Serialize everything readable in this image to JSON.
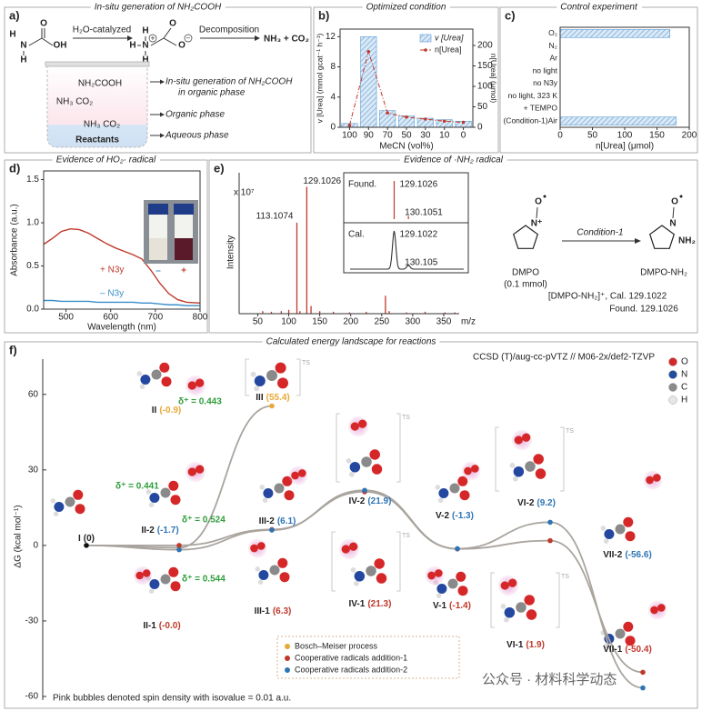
{
  "panel_labels": [
    "a)",
    "b)",
    "c)",
    "d)",
    "e)",
    "f)"
  ],
  "panel_a": {
    "title": "In-situ generation of NH₂COOH",
    "step1": "H₂O-catalyzed",
    "step2": "Decomposition",
    "products": "NH₃ + CO₂",
    "reactant_atoms": [
      "H",
      "N",
      "O",
      "OH",
      "H"
    ],
    "intermediate_atoms": [
      "H",
      "H",
      "N",
      "H",
      "O",
      "O"
    ],
    "charges": [
      "+",
      "−"
    ],
    "beaker_texts": [
      "NH₂COOH",
      "NH₃  CO₂",
      "NH₃  CO₂",
      "Reactants"
    ],
    "phase_notes": [
      "In-situ generation of NH₂COOH",
      "in organic phase",
      "Organic phase",
      "Aqueous phase"
    ]
  },
  "panel_e_scheme": {
    "reagent": "DMPO",
    "amount": "(0.1 mmol)",
    "condition": "Condition-1",
    "product": "DMPO-NH₂",
    "reagent_atoms": [
      "N⁺",
      "O"
    ],
    "product_atoms": [
      "N",
      "O",
      "NH₂"
    ],
    "ion": "[DMPO-NH₂]⁺, Cal. 129.1022",
    "found": "Found. 129.1026"
  },
  "watermark": "公众号 · 材料科学动态",
  "chart_data": [
    {
      "type": "bar_line",
      "title": "Optimized condition",
      "xlabel": "MeCN (vol%)",
      "ylabel": "v [Urea] (mmol gcat⁻¹ h⁻¹)",
      "y2label": "n[Urea] (μmol)",
      "categories": [
        "100",
        "90",
        "70",
        "50",
        "30",
        "10",
        "0"
      ],
      "series": [
        {
          "name": "v [Urea]",
          "color": "#5b9bd5",
          "values": [
            0.5,
            12,
            2.2,
            1.5,
            1.2,
            1.0,
            0.8
          ]
        },
        {
          "name": "n[Urea]",
          "color": "#c0392b",
          "axis": "y2",
          "values": [
            5,
            185,
            35,
            25,
            20,
            15,
            12
          ]
        }
      ],
      "ylim": [
        0,
        13
      ],
      "yticks": [
        0,
        4,
        8,
        12
      ],
      "y2lim": [
        0,
        240
      ],
      "y2ticks": [
        0,
        50,
        100,
        150,
        200
      ]
    },
    {
      "type": "hbar",
      "title": "Control experiment",
      "xlabel": "n[Urea] (μmol)",
      "categories": [
        "O₂",
        "N₂",
        "Ar",
        "no light",
        "no N3y",
        "no light, 323 K",
        "+ TEMPO",
        "(Condition-1)Air"
      ],
      "values": [
        170,
        0,
        0,
        0,
        0,
        0,
        0,
        180
      ],
      "color": "#5b9bd5",
      "xlim": [
        0,
        200
      ],
      "xticks": [
        0,
        50,
        100,
        150,
        200
      ]
    },
    {
      "type": "line",
      "title": "Evidence of HO₂· radical",
      "xlabel": "Wavelength (nm)",
      "ylabel": "Absorbance (a.u.)",
      "x": [
        450,
        470,
        490,
        510,
        530,
        550,
        570,
        590,
        610,
        630,
        650,
        670,
        690,
        710,
        730,
        750,
        770,
        800
      ],
      "series": [
        {
          "name": "+ N3y",
          "color": "#c0392b",
          "values": [
            0.75,
            0.82,
            0.9,
            0.93,
            0.92,
            0.88,
            0.82,
            0.76,
            0.71,
            0.67,
            0.63,
            0.58,
            0.45,
            0.3,
            0.18,
            0.11,
            0.08,
            0.07
          ]
        },
        {
          "name": "– N3y",
          "color": "#3a8fc8",
          "values": [
            0.1,
            0.1,
            0.09,
            0.09,
            0.09,
            0.09,
            0.08,
            0.08,
            0.08,
            0.08,
            0.08,
            0.07,
            0.07,
            0.06,
            0.05,
            0.05,
            0.04,
            0.04
          ]
        }
      ],
      "xlim": [
        450,
        800
      ],
      "xticks": [
        500,
        600,
        700,
        800
      ],
      "ylim": [
        0,
        1.6
      ],
      "yticks": [
        {
          "value": 0,
          "label": "0.0"
        },
        0.5,
        {
          "value": 1,
          "label": "1.0"
        },
        1.5
      ],
      "inset_labels": [
        "–",
        "+"
      ]
    },
    {
      "type": "stem",
      "title": "Evidence of ·NH₂ radical",
      "xlabel": "m/z",
      "ylabel": "Intensity",
      "y_scale_label": "x 10⁷",
      "color": "#c0392b",
      "x": [
        58,
        72,
        88,
        100,
        113.1074,
        118,
        129.1026,
        136,
        150,
        172,
        198,
        225,
        256,
        262,
        290,
        320,
        352,
        368
      ],
      "values": [
        0.02,
        0.015,
        0.02,
        0.03,
        0.71,
        0.02,
        0.99,
        0.06,
        0.02,
        0.015,
        0.01,
        0.015,
        0.14,
        0.02,
        0.01,
        0.015,
        0.01,
        0.01
      ],
      "xlim": [
        20,
        375
      ],
      "xticks": [
        50,
        100,
        150,
        200,
        250,
        300,
        350
      ],
      "ylim": [
        0,
        1.1
      ],
      "inset": {
        "xlim": [
          126,
          134
        ],
        "series": [
          {
            "name": "Found.",
            "color": "#c0392b",
            "x": [
              129.1026,
              130.1051
            ],
            "values": [
              1,
              0.08
            ]
          },
          {
            "name": "Cal.",
            "color": "#333333",
            "x": [
              129.1022,
              130.105
            ],
            "values": [
              1,
              0.1
            ]
          }
        ]
      }
    },
    {
      "type": "energy",
      "title": "Calculated energy landscape for reactions",
      "ylabel": "ΔG (kcal mol⁻¹)",
      "ylim": [
        -60,
        74
      ],
      "yticks": [
        60,
        30,
        0,
        -30,
        -60
      ],
      "method": "CCSD (T)/aug-cc-pVTZ // M06-2x/def2-TZVP",
      "start": {
        "state": "I",
        "value": 0,
        "value_label": "(0)"
      },
      "series": [
        {
          "name": "Bosch–Meiser process",
          "color": "#e8a838",
          "states": [
            "II",
            "III"
          ],
          "values": [
            -0.9,
            55.4
          ],
          "value_labels": [
            "(-0.9)",
            "(55.4)"
          ]
        },
        {
          "name": "Cooperative radicals addition-1",
          "color": "#c0392b",
          "states": [
            "II-1",
            "III-1",
            "IV-1",
            "V-1",
            "VI-1",
            "VII-1"
          ],
          "values": [
            0,
            6.3,
            21.3,
            -1.4,
            1.9,
            -50.4
          ],
          "value_labels": [
            "(-0.0)",
            "(6.3)",
            "(21.3)",
            "(-1.4)",
            "(1.9)",
            "(-50.4)"
          ]
        },
        {
          "name": "Cooperative radicals addition-2",
          "color": "#2e75b6",
          "states": [
            "II-2",
            "III-2",
            "IV-2",
            "V-2",
            "VI-2",
            "VII-2"
          ],
          "values": [
            -1.7,
            6.1,
            21.9,
            -1.3,
            9.2,
            -56.6
          ],
          "value_labels": [
            "(-1.7)",
            "(6.1)",
            "(21.9)",
            "(-1.3)",
            "(9.2)",
            "(-56.6)"
          ]
        }
      ],
      "annotations": [
        "δ⁺ = 0.441",
        "δ⁺ = 0.443",
        "δ⁺ = 0.524",
        "δ⁺ = 0.544"
      ],
      "ts_label": "TS",
      "atom_legend": [
        "O",
        "N",
        "C",
        "H"
      ],
      "note": "Pink bubbles denoted spin density with isovalue = 0.01 a.u."
    }
  ]
}
